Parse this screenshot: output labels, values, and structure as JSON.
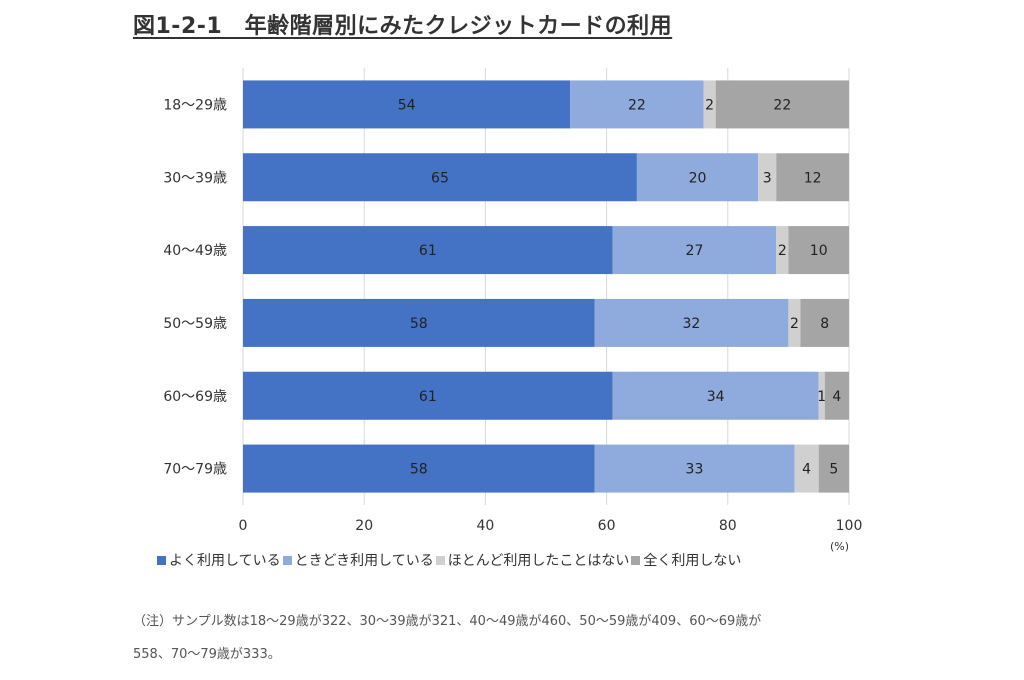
{
  "title": "図1-2-1　年齢階層別にみたクレジットカードの利用",
  "chart_data": {
    "type": "bar",
    "orientation": "horizontal",
    "stacked": true,
    "title": "",
    "xlabel": "",
    "unit_label": "(%)",
    "xlim": [
      0,
      100
    ],
    "xticks": [
      "0",
      "20",
      "40",
      "60",
      "80",
      "100"
    ],
    "grid": true,
    "legend_position": "bottom",
    "categories": [
      "18～29歳",
      "30～39歳",
      "40～49歳",
      "50～59歳",
      "60～69歳",
      "70～79歳"
    ],
    "series": [
      {
        "name": "よく利用している",
        "color": "#4472C4",
        "values": [
          54,
          65,
          61,
          58,
          61,
          58
        ]
      },
      {
        "name": "ときどき利用している",
        "color": "#8FAADC",
        "values": [
          22,
          20,
          27,
          32,
          34,
          33
        ]
      },
      {
        "name": "ほとんど利用したことはない",
        "color": "#D0D0D0",
        "values": [
          2,
          3,
          2,
          2,
          1,
          4
        ]
      },
      {
        "name": "全く利用しない",
        "color": "#A5A5A5",
        "values": [
          22,
          12,
          10,
          8,
          4,
          5
        ]
      }
    ]
  },
  "note": {
    "line1": "（注）サンプル数は18～29歳が322、30～39歳が321、40～49歳が460、50～59歳が409、60～69歳が",
    "line2": "558、70～79歳が333。"
  }
}
